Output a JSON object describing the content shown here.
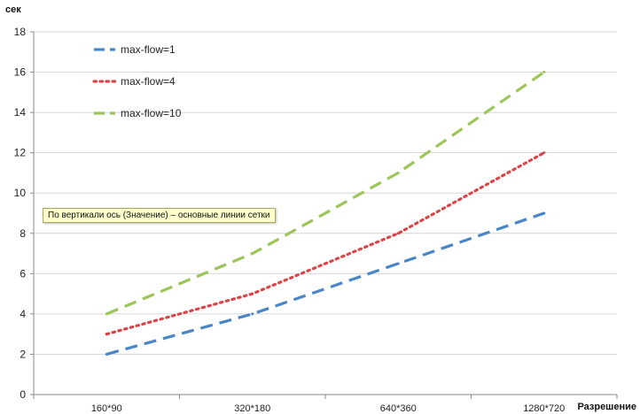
{
  "chart_data": {
    "type": "line",
    "title": "",
    "ylabel": "сек",
    "xlabel": "Разрешение",
    "categories": [
      "160*90",
      "320*180",
      "640*360",
      "1280*720"
    ],
    "ylim": [
      0,
      18
    ],
    "yticks": [
      "0",
      "2",
      "4",
      "6",
      "8",
      "10",
      "12",
      "14",
      "16",
      "18"
    ],
    "grid": true,
    "legend_position": "top-left",
    "series": [
      {
        "name": "max-flow=1",
        "values": [
          2,
          4,
          6.5,
          9
        ],
        "color": "#4a86c5",
        "style": "dashed"
      },
      {
        "name": "max-flow=4",
        "values": [
          3,
          5,
          8,
          12
        ],
        "color": "#d9464a",
        "style": "dotted"
      },
      {
        "name": "max-flow=10",
        "values": [
          4,
          7,
          11,
          16
        ],
        "color": "#9dc55a",
        "style": "dashed"
      }
    ]
  },
  "tooltip": {
    "text": "По вертикали ось (Значение)  – основные линии сетки"
  }
}
